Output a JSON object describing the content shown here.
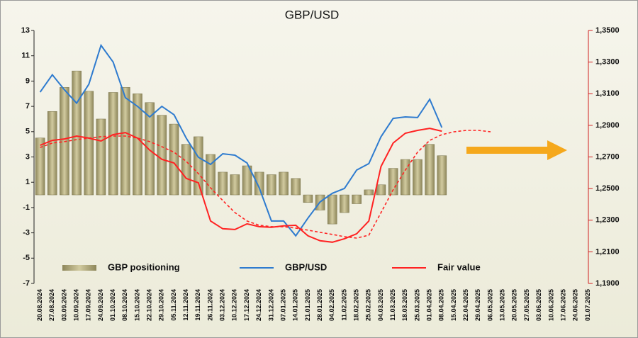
{
  "chart_data": {
    "type": "bar",
    "title": "GBP/USD",
    "categories": [
      "20.08.2024",
      "27.08.2024",
      "03.09.2024",
      "10.09.2024",
      "17.09.2024",
      "24.09.2024",
      "01.10.2024",
      "08.10.2024",
      "15.10.2024",
      "22.10.2024",
      "29.10.2024",
      "05.11.2024",
      "12.11.2024",
      "19.11.2024",
      "26.11.2024",
      "03.12.2024",
      "10.12.2024",
      "17.12.2024",
      "24.12.2024",
      "31.12.2024",
      "07.01.2025",
      "14.01.2025",
      "21.01.2025",
      "28.01.2025",
      "04.02.2025",
      "11.02.2025",
      "18.02.2025",
      "25.02.2025",
      "04.03.2025",
      "11.03.2025",
      "18.03.2025",
      "25.03.2025",
      "01.04.2025",
      "08.04.2025",
      "15.04.2025",
      "22.04.2025",
      "29.04.2025",
      "06.05.2025",
      "13.05.2025",
      "20.05.2025",
      "27.05.2025",
      "03.06.2025",
      "10.06.2025",
      "17.06.2025",
      "24.06.2025",
      "01.07.2025"
    ],
    "series": [
      {
        "name": "GBP positioning",
        "type": "bar",
        "color": "#b3ab7c",
        "values": [
          4.5,
          6.6,
          8.5,
          9.8,
          8.2,
          6.0,
          8.1,
          8.5,
          8.0,
          7.3,
          6.3,
          5.6,
          4.0,
          4.6,
          3.2,
          1.8,
          1.6,
          2.3,
          1.8,
          1.6,
          1.8,
          1.3,
          -0.6,
          -1.2,
          -2.3,
          -1.4,
          -0.7,
          0.4,
          0.8,
          2.1,
          2.8,
          2.8,
          4.0,
          3.1,
          null,
          null,
          null,
          null,
          null,
          null,
          null,
          null,
          null,
          null,
          null,
          null
        ]
      },
      {
        "name": "GBP/USD",
        "type": "line",
        "axis": "y2",
        "color": "#2e7bcf",
        "values": [
          1.311,
          1.322,
          1.3125,
          1.304,
          1.316,
          1.3406,
          1.33,
          1.3075,
          1.302,
          1.2953,
          1.302,
          1.2967,
          1.2819,
          1.2698,
          1.2653,
          1.272,
          1.2711,
          1.2662,
          1.2505,
          1.2295,
          1.2295,
          1.2201,
          1.2313,
          1.2416,
          1.247,
          1.2501,
          1.2617,
          1.2658,
          1.2828,
          1.2944,
          1.2953,
          1.2949,
          1.3065,
          1.2886,
          null,
          null,
          null,
          null,
          null,
          null,
          null,
          null,
          null,
          null,
          null,
          null
        ]
      },
      {
        "name": "Fair value",
        "type": "line",
        "axis": "y2",
        "color": "#ff2222",
        "values": [
          1.2774,
          1.2805,
          1.2814,
          1.2832,
          1.2819,
          1.2801,
          1.2841,
          1.2854,
          1.2819,
          1.2743,
          1.2685,
          1.2662,
          1.2564,
          1.2537,
          1.2295,
          1.2246,
          1.2241,
          1.2277,
          1.2259,
          1.2255,
          1.2264,
          1.2268,
          1.2201,
          1.217,
          1.2161,
          1.2183,
          1.2214,
          1.2295,
          1.264,
          1.2788,
          1.285,
          1.2868,
          1.2881,
          1.2863,
          null,
          null,
          null,
          null,
          null,
          null,
          null,
          null,
          null,
          null,
          null,
          null
        ]
      },
      {
        "type": "line",
        "axis": "y2",
        "color": "#ff2222",
        "dash": true,
        "values": [
          1.276,
          1.2788,
          1.2797,
          1.281,
          1.2819,
          1.2828,
          1.2832,
          1.2832,
          1.2819,
          1.2797,
          1.2765,
          1.273,
          1.2672,
          1.2595,
          1.2505,
          1.2425,
          1.2348,
          1.2295,
          1.2268,
          1.2259,
          1.2259,
          1.225,
          1.2237,
          1.2223,
          1.221,
          1.2196,
          1.2187,
          1.2205,
          1.2348,
          1.2492,
          1.2617,
          1.273,
          1.2805,
          1.2841,
          1.2859,
          1.2868,
          1.2868,
          1.2859,
          null,
          null,
          null,
          null,
          null,
          null,
          null,
          null
        ]
      }
    ],
    "ylim": [
      -7,
      13
    ],
    "yticks": [
      13,
      11,
      9,
      7,
      5,
      3,
      1,
      -1,
      -3,
      -5,
      -7
    ],
    "y2lim": [
      1.19,
      1.35
    ],
    "y2ticks": [
      {
        "value": 1.35,
        "label": "1,3500"
      },
      {
        "value": 1.33,
        "label": "1,3300"
      },
      {
        "value": 1.31,
        "label": "1,3100"
      },
      {
        "value": 1.29,
        "label": "1,2900"
      },
      {
        "value": 1.27,
        "label": "1,2700"
      },
      {
        "value": 1.25,
        "label": "1,2500"
      },
      {
        "value": 1.23,
        "label": "1,2300"
      },
      {
        "value": 1.21,
        "label": "1,2100"
      },
      {
        "value": 1.19,
        "label": "1,1900"
      }
    ]
  }
}
